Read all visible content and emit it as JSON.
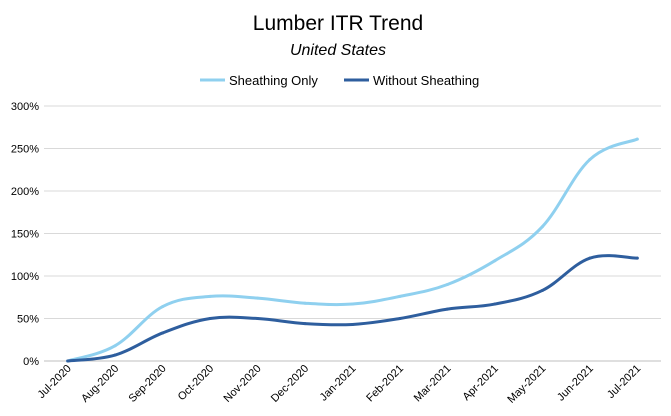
{
  "chart_data": {
    "type": "line",
    "title": "Lumber ITR Trend",
    "subtitle": "United States",
    "xlabel": "",
    "ylabel": "",
    "categories": [
      "Jul-2020",
      "Aug-2020",
      "Sep-2020",
      "Oct-2020",
      "Nov-2020",
      "Dec-2020",
      "Jan-2021",
      "Feb-2021",
      "Mar-2021",
      "Apr-2021",
      "May-2021",
      "Jun-2021",
      "Jul-2021"
    ],
    "y_ticks": [
      "0%",
      "50%",
      "100%",
      "150%",
      "200%",
      "250%",
      "300%"
    ],
    "ylim": [
      0,
      3
    ],
    "y_format": "percent",
    "grid": true,
    "legend_position": "top",
    "series": [
      {
        "name": "Sheathing Only",
        "color": "#8fd0ef",
        "values": [
          0.0,
          0.18,
          0.64,
          0.76,
          0.74,
          0.68,
          0.67,
          0.76,
          0.9,
          1.18,
          1.58,
          2.37,
          2.61
        ]
      },
      {
        "name": "Without Sheathing",
        "color": "#2e5e9e",
        "values": [
          0.0,
          0.07,
          0.33,
          0.5,
          0.5,
          0.44,
          0.43,
          0.5,
          0.61,
          0.67,
          0.83,
          1.21,
          1.21
        ]
      }
    ]
  }
}
